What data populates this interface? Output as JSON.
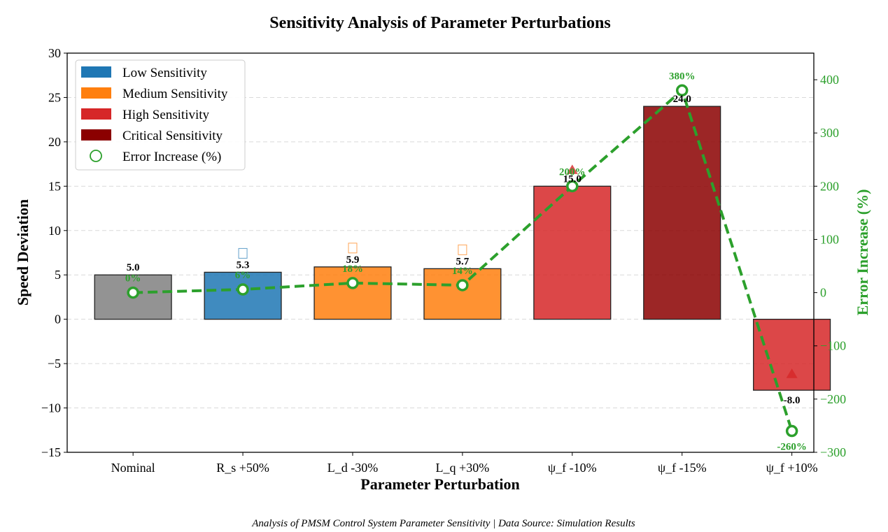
{
  "chart_data": {
    "type": "bar",
    "title": "Sensitivity Analysis of Parameter Perturbations",
    "xlabel": "Parameter Perturbation",
    "ylabel": "Speed Deviation",
    "ylabel_right": "Error Increase (%)",
    "ylim": [
      -15,
      30
    ],
    "ylim_right": [
      -300,
      450
    ],
    "yticks": [
      -15,
      -10,
      -5,
      0,
      5,
      10,
      15,
      20,
      25,
      30
    ],
    "yticks_right": [
      -300,
      -200,
      -100,
      0,
      100,
      200,
      300,
      400
    ],
    "ytick_labels": [
      "−15",
      "−10",
      "−5",
      "0",
      "5",
      "10",
      "15",
      "20",
      "25",
      "30"
    ],
    "ytick_labels_right": [
      "−300",
      "−200",
      "−100",
      "0",
      "100",
      "200",
      "300",
      "400"
    ],
    "categories": [
      "Nominal",
      "R_s +50%",
      "L_d -30%",
      "L_q +30%",
      "ψ_f -10%",
      "ψ_f -15%",
      "ψ_f +10%"
    ],
    "values": [
      5.0,
      5.3,
      5.9,
      5.7,
      15.0,
      24.0,
      -8.0
    ],
    "value_labels": [
      "5.0",
      "5.3",
      "5.9",
      "5.7",
      "15.0",
      "24.0",
      "-8.0"
    ],
    "sensitivity": [
      "nominal",
      "low",
      "medium",
      "medium",
      "high",
      "critical",
      "high"
    ],
    "error_increase": [
      0,
      6,
      18,
      14,
      200,
      380,
      -260
    ],
    "error_labels": [
      "0%",
      "6%",
      "18%",
      "14%",
      "200%",
      "380%",
      "-260%"
    ],
    "markers": [
      "",
      "square",
      "square",
      "square",
      "triangle",
      "",
      "triangle"
    ],
    "colors": {
      "nominal": "#808080",
      "low": "#1f77b4",
      "medium": "#ff7f0e",
      "high": "#d62728",
      "critical": "#8b0000",
      "line": "#2ca02c"
    },
    "legend": {
      "position": "top-left",
      "entries": [
        {
          "label": "Low Sensitivity",
          "key": "low"
        },
        {
          "label": "Medium Sensitivity",
          "key": "medium"
        },
        {
          "label": "High Sensitivity",
          "key": "high"
        },
        {
          "label": "Critical Sensitivity",
          "key": "critical"
        },
        {
          "label": "Error Increase (%)",
          "key": "line"
        }
      ]
    },
    "grid": true
  },
  "caption": "Analysis of PMSM Control System Parameter Sensitivity | Data Source: Simulation Results"
}
